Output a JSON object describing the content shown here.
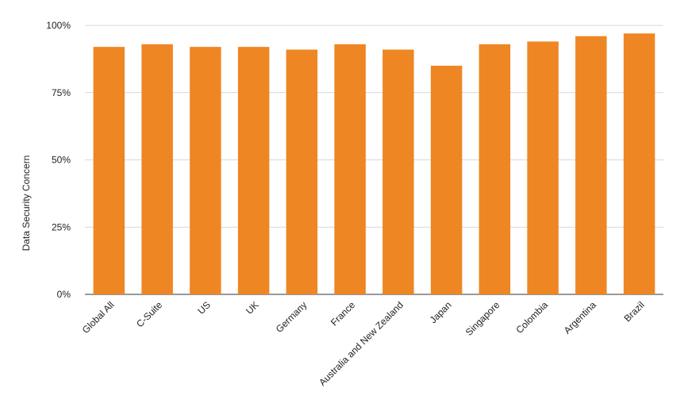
{
  "chart_data": {
    "type": "bar",
    "title": "",
    "xlabel": "",
    "ylabel": "Data Security Concern",
    "categories": [
      "Global All",
      "C-Suite",
      "US",
      "UK",
      "Germany",
      "France",
      "Australia and New Zealand",
      "Japan",
      "Singapore",
      "Colombia",
      "Argentina",
      "Brazil"
    ],
    "series": [
      {
        "values": [
          92,
          93,
          92,
          92,
          91,
          93,
          91,
          85,
          93,
          94,
          96,
          97
        ]
      }
    ],
    "ylim": [
      0,
      100
    ],
    "yticks": [
      "0%",
      "25%",
      "50%",
      "75%",
      "100%"
    ],
    "grid": true,
    "legend": "none",
    "colors": {
      "bar": "#ee8624",
      "grid": "#cccccc",
      "axis": "#333333"
    }
  }
}
